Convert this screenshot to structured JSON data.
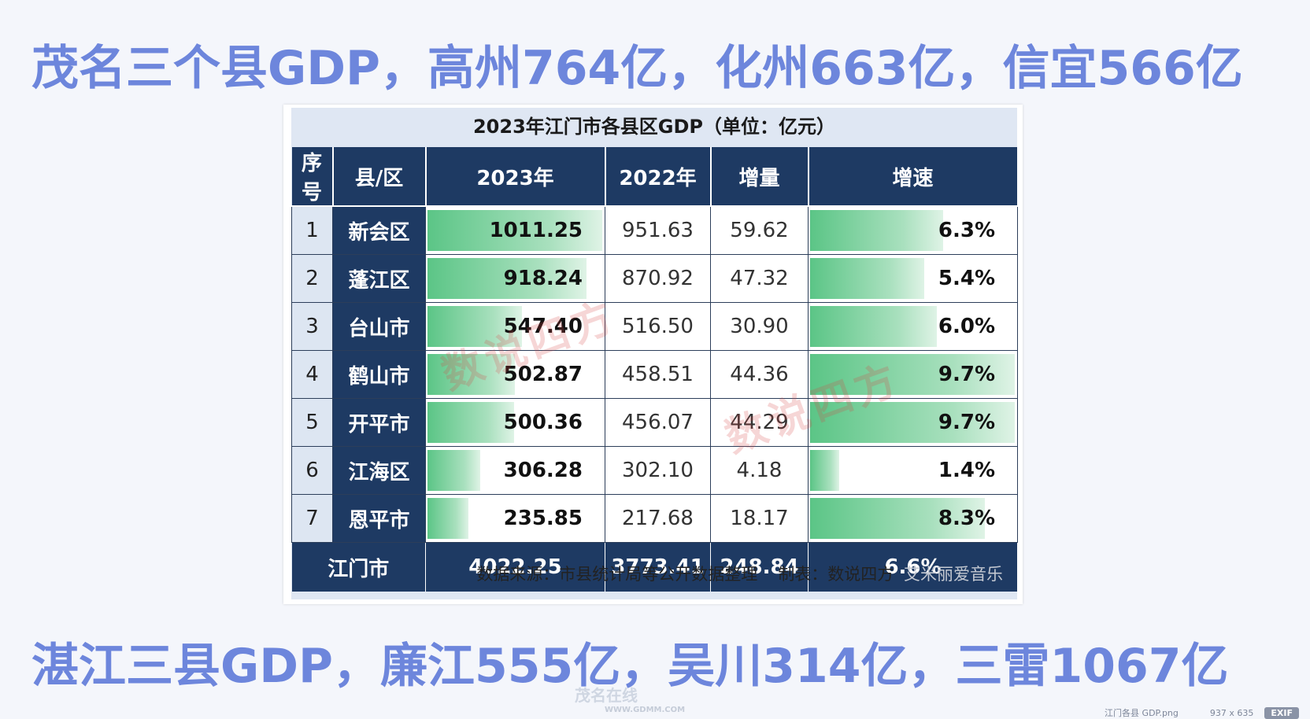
{
  "headlines": {
    "top": "茂名三个县GDP，高州764亿，化州663亿，信宜566亿",
    "bottom": "湛江三县GDP，廉江555亿，吴川314亿，三雷1067亿"
  },
  "table": {
    "title": "2023年江门市各县区GDP（单位：亿元）",
    "columns": [
      "序号",
      "县/区",
      "2023年",
      "2022年",
      "增量",
      "增速"
    ],
    "rows": [
      {
        "idx": "1",
        "district": "新会区",
        "gdp2023": "1011.25",
        "gdp2022": "951.63",
        "increment": "59.62",
        "growth": "6.3%"
      },
      {
        "idx": "2",
        "district": "蓬江区",
        "gdp2023": "918.24",
        "gdp2022": "870.92",
        "increment": "47.32",
        "growth": "5.4%"
      },
      {
        "idx": "3",
        "district": "台山市",
        "gdp2023": "547.40",
        "gdp2022": "516.50",
        "increment": "30.90",
        "growth": "6.0%"
      },
      {
        "idx": "4",
        "district": "鹤山市",
        "gdp2023": "502.87",
        "gdp2022": "458.51",
        "increment": "44.36",
        "growth": "9.7%"
      },
      {
        "idx": "5",
        "district": "开平市",
        "gdp2023": "500.36",
        "gdp2022": "456.07",
        "increment": "44.29",
        "growth": "9.7%"
      },
      {
        "idx": "6",
        "district": "江海区",
        "gdp2023": "306.28",
        "gdp2022": "302.10",
        "increment": "4.18",
        "growth": "1.4%"
      },
      {
        "idx": "7",
        "district": "恩平市",
        "gdp2023": "235.85",
        "gdp2022": "217.68",
        "increment": "18.17",
        "growth": "8.3%"
      }
    ],
    "total": {
      "label": "江门市",
      "gdp2023": "4022.25",
      "gdp2022": "3773.41",
      "increment": "248.84",
      "growth": "6.6%"
    },
    "source_label": "数据来源：市县统计局等公开数据整理",
    "maker_label": "制表：数说四方",
    "watermark_text": "数说四方",
    "bar_color": "#5bc586",
    "header_color": "#1e3a63"
  },
  "overlays": {
    "credit": "艾米丽爱音乐",
    "site_logo": "茂名在线",
    "site_url": "WWW.GDMM.COM",
    "file_name": "江门各县 GDP.png",
    "file_dims": "937 x 635",
    "exif_label": "EXIF"
  }
}
